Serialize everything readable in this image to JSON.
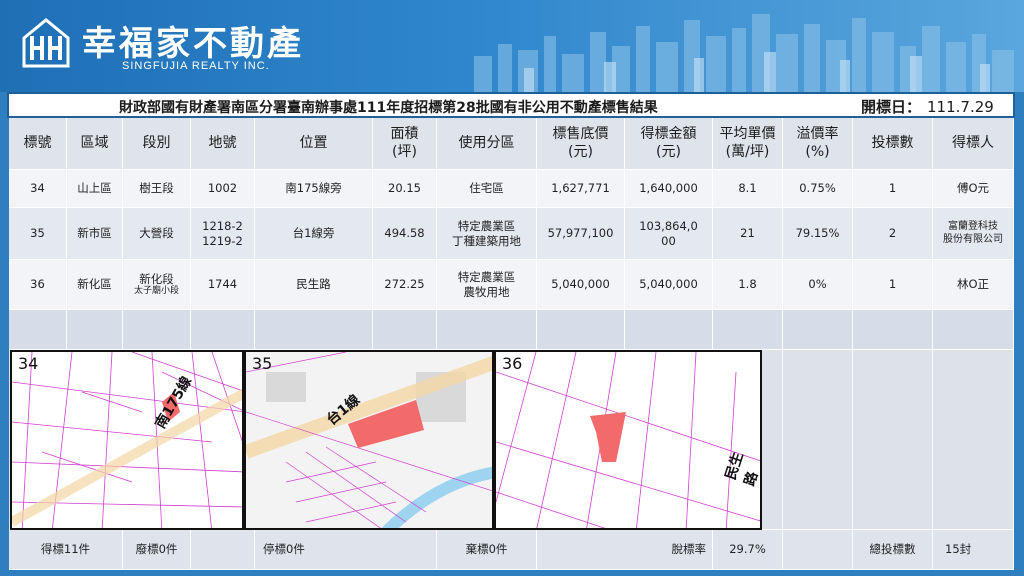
{
  "brand": {
    "name_cn": "幸福家不動產",
    "name_en": "SINGFUJIA REALTY INC."
  },
  "title": "財政部國有財產署南區分署臺南辦事處111年度招標第28批國有非公用不動產標售結果",
  "open_date": {
    "label": "開標日：",
    "value": "111.7.29"
  },
  "headers": [
    "標號",
    "區域",
    "段別",
    "地號",
    "位置",
    "面積\n(坪)",
    "使用分區",
    "標售底價\n(元)",
    "得標金額\n(元)",
    "平均單價\n(萬/坪)",
    "溢價率\n(%)",
    "投標數",
    "得標人"
  ],
  "rows": [
    {
      "no": "34",
      "area": "山上區",
      "section": "樹王段",
      "section_sub": "",
      "lot": "1002",
      "location": "南175線旁",
      "size": "20.15",
      "zoning": "住宅區",
      "reserve": "1,627,771",
      "winning": "1,640,000",
      "unit_price": "8.1",
      "premium": "0.75%",
      "bids": "1",
      "winner": "傅O元"
    },
    {
      "no": "35",
      "area": "新市區",
      "section": "大營段",
      "section_sub": "",
      "lot": "1218-2\n1219-2",
      "location": "台1線旁",
      "size": "494.58",
      "zoning": "特定農業區\n丁種建築用地",
      "reserve": "57,977,100",
      "winning": "103,864,0\n00",
      "unit_price": "21",
      "premium": "79.15%",
      "bids": "2",
      "winner": "富蘭登科技\n股份有限公司"
    },
    {
      "no": "36",
      "area": "新化區",
      "section": "新化段",
      "section_sub": "太子廟小段",
      "lot": "1744",
      "location": "民生路",
      "size": "272.25",
      "zoning": "特定農業區\n農牧用地",
      "reserve": "5,040,000",
      "winning": "5,040,000",
      "unit_price": "1.8",
      "premium": "0%",
      "bids": "1",
      "winner": "林O正"
    }
  ],
  "maps": [
    {
      "num": "34",
      "road": "南175線"
    },
    {
      "num": "35",
      "road": "台1線"
    },
    {
      "num": "36",
      "road": "民生路"
    }
  ],
  "footer": {
    "won": "得標11件",
    "void": "廢標0件",
    "stopped": "停標0件",
    "abandoned": "棄標0件",
    "failure_label": "脫標率",
    "failure_value": "29.7%",
    "total_label": "總投標數",
    "total_value": "15封"
  },
  "colors": {
    "header_blue": "#2f7fc0",
    "parcel": "#f26a6a",
    "cadastral_line": "#d13fd1"
  }
}
